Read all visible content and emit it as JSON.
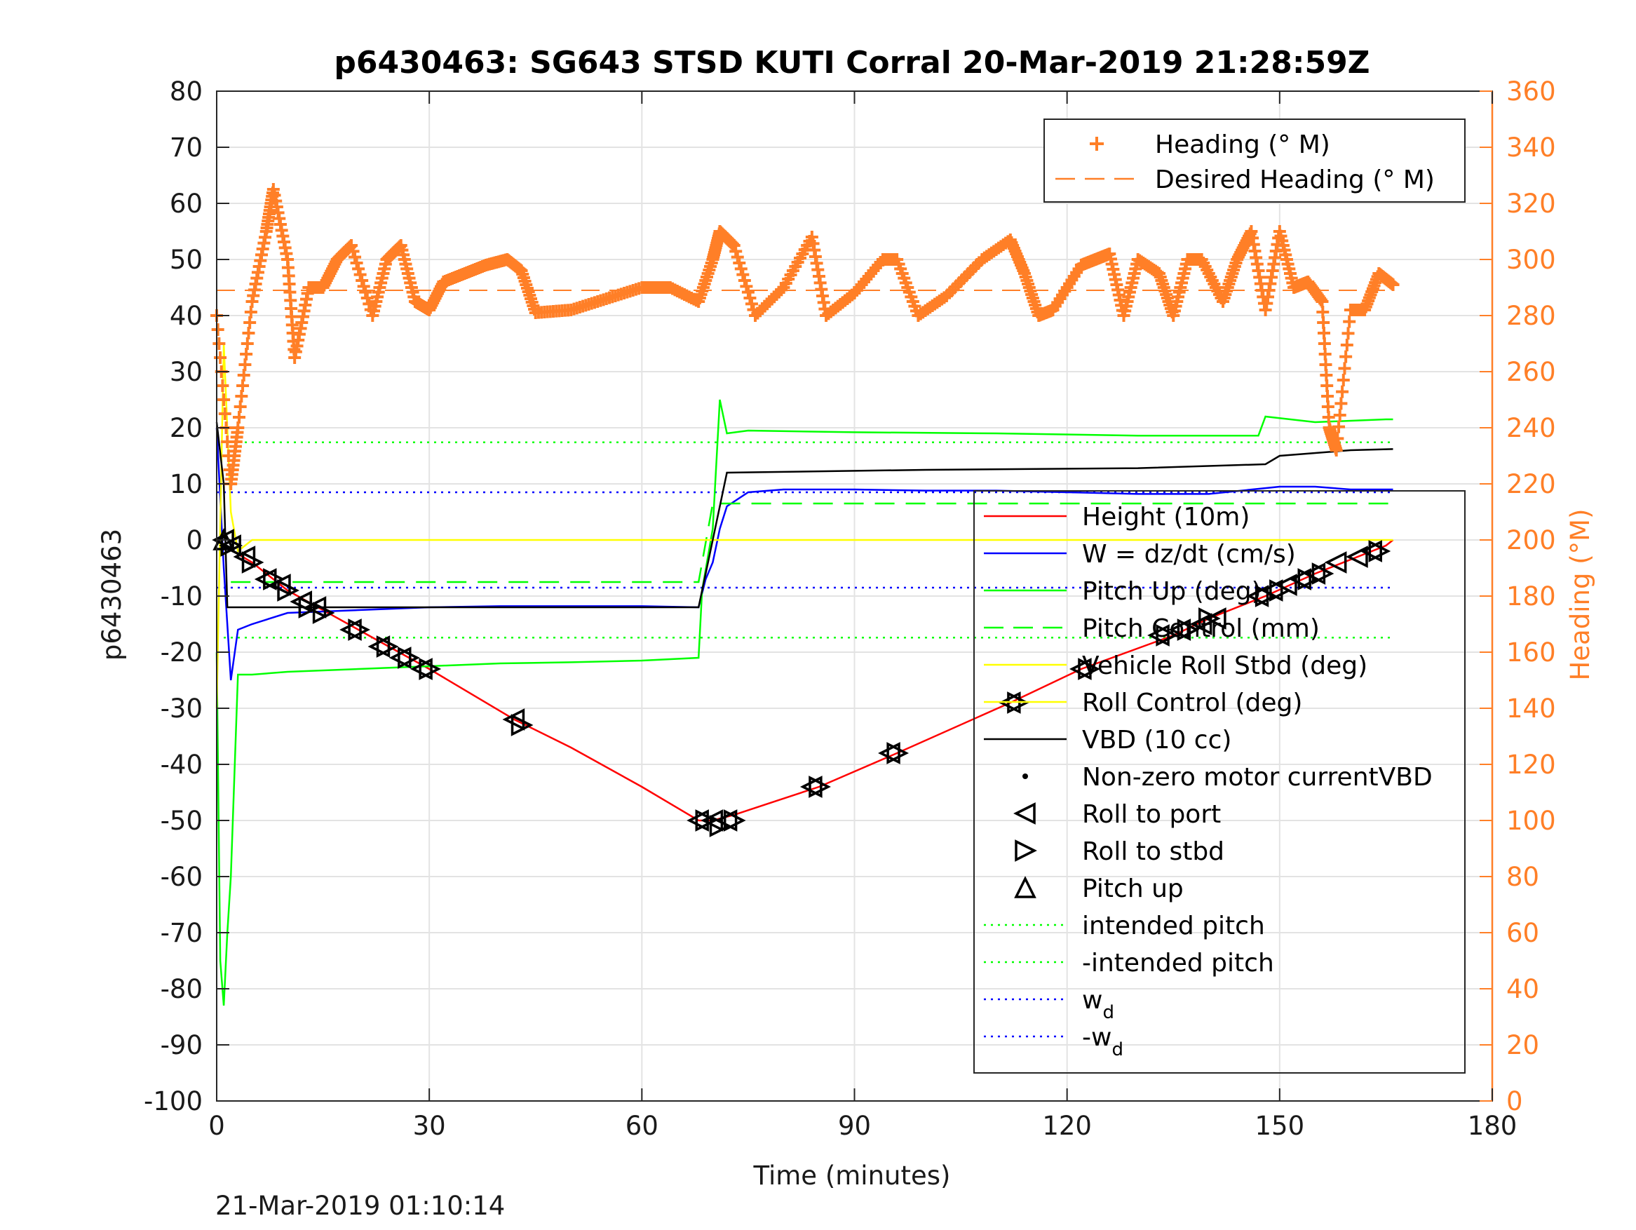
{
  "chart_data": {
    "type": "line",
    "title": "p6430463: SG643 STSD KUTI Corral 20-Mar-2019 21:28:59Z",
    "xlabel": "Time (minutes)",
    "ylabel_left": "p6430463",
    "ylabel_right": "Heading (°M)",
    "footer": "21-Mar-2019 01:10:14",
    "xlim": [
      0,
      180
    ],
    "ylim_left": [
      -100,
      80
    ],
    "ylim_right": [
      0,
      360
    ],
    "xticks": [
      0,
      30,
      60,
      90,
      120,
      150,
      180
    ],
    "yticks_left": [
      80,
      70,
      60,
      50,
      40,
      30,
      20,
      10,
      0,
      -10,
      -20,
      -30,
      -40,
      -50,
      -60,
      -70,
      -80,
      -90,
      -100
    ],
    "yticks_right": [
      360,
      340,
      320,
      300,
      280,
      260,
      240,
      220,
      200,
      180,
      160,
      140,
      120,
      100,
      80,
      60,
      40,
      20,
      0
    ],
    "grid": true,
    "legend_top": {
      "placement": "top-right",
      "entries": [
        {
          "label": "Heading (° M)",
          "color": "#ff7f27",
          "style": "plus"
        },
        {
          "label": "Desired Heading (° M)",
          "color": "#ff7f27",
          "style": "dash"
        }
      ]
    },
    "legend_main": {
      "placement": "right",
      "entries": [
        {
          "label": "Height (10m)",
          "color": "#ff0000",
          "style": "line"
        },
        {
          "label": "W = dz/dt (cm/s)",
          "color": "#0000ff",
          "style": "line"
        },
        {
          "label": "Pitch Up (deg)",
          "color": "#00ff00",
          "style": "line"
        },
        {
          "label": "Pitch Control (mm)",
          "color": "#00ff00",
          "style": "dash"
        },
        {
          "label": "Vehicle Roll Stbd (deg)",
          "color": "#ffff00",
          "style": "line"
        },
        {
          "label": "Roll Control (deg)",
          "color": "#ffff00",
          "style": "line"
        },
        {
          "label": "VBD (10 cc)",
          "color": "#000000",
          "style": "line"
        },
        {
          "label": "Non-zero motor currentVBD",
          "color": "#000000",
          "style": "dot"
        },
        {
          "label": "Roll to port",
          "color": "#000000",
          "style": "tri-left"
        },
        {
          "label": "Roll to stbd",
          "color": "#000000",
          "style": "tri-right"
        },
        {
          "label": "Pitch up",
          "color": "#000000",
          "style": "tri-up"
        },
        {
          "label": "intended pitch",
          "color": "#00ff00",
          "style": "dot-line"
        },
        {
          "label": "-intended pitch",
          "color": "#00ff00",
          "style": "dot-line"
        },
        {
          "label": "w",
          "sub": "d",
          "color": "#0000ff",
          "style": "dot-line"
        },
        {
          "label": "-w",
          "sub": "d",
          "color": "#0000ff",
          "style": "dot-line"
        }
      ]
    },
    "reference_lines": {
      "intended_pitch": 17.4,
      "neg_intended_pitch": -17.4,
      "w_d": 8.5,
      "neg_w_d": -8.5,
      "desired_heading": 289
    },
    "series": [
      {
        "name": "Height (10m)",
        "color": "#ff0000",
        "axis": "left",
        "x": [
          0,
          1,
          5,
          10,
          20,
          30,
          42,
          50,
          60,
          68,
          70,
          73,
          85,
          96,
          112,
          122,
          135,
          140,
          148,
          155,
          165,
          166
        ],
        "y": [
          0,
          -1,
          -4,
          -9,
          -16,
          -23,
          -32,
          -37,
          -44,
          -50,
          -50,
          -49,
          -44,
          -38,
          -29,
          -23,
          -17,
          -14,
          -10,
          -6,
          -1,
          0
        ]
      },
      {
        "name": "W = dz/dt (cm/s)",
        "color": "#0000ff",
        "axis": "left",
        "x": [
          0,
          1,
          2,
          3,
          5,
          10,
          20,
          30,
          40,
          50,
          60,
          68,
          69,
          70,
          71,
          72,
          75,
          80,
          90,
          100,
          110,
          120,
          130,
          140,
          150,
          155,
          160,
          166
        ],
        "y": [
          20,
          -5,
          -25,
          -16,
          -15,
          -13,
          -12.5,
          -12,
          -11.8,
          -11.8,
          -11.8,
          -12,
          -7,
          -4,
          2,
          6,
          8.5,
          9,
          9,
          8.8,
          8.8,
          8.5,
          8.2,
          8.2,
          9.5,
          9.5,
          9,
          9
        ]
      },
      {
        "name": "Pitch Up (deg)",
        "color": "#00ff00",
        "axis": "left",
        "x": [
          0,
          0.5,
          1,
          1.5,
          2,
          3,
          5,
          10,
          20,
          30,
          40,
          50,
          60,
          68,
          68.5,
          70,
          71,
          72,
          75,
          90,
          110,
          130,
          147,
          148,
          155,
          165,
          166
        ],
        "y": [
          -20,
          -75,
          -83,
          -70,
          -60,
          -24,
          -24,
          -23.5,
          -23,
          -22.5,
          -22,
          -21.8,
          -21.5,
          -21,
          -9,
          2,
          25,
          19,
          19.5,
          19.2,
          19,
          18.6,
          18.6,
          22,
          21,
          21.5,
          21.5
        ]
      },
      {
        "name": "Pitch Control (mm)",
        "color": "#00ff00",
        "axis": "left",
        "dash": true,
        "x": [
          2,
          68,
          70,
          166
        ],
        "y": [
          -7.5,
          -7.5,
          6.5,
          6.5
        ]
      },
      {
        "name": "Vehicle Roll Stbd (deg)",
        "color": "#ffff00",
        "axis": "left",
        "x": [
          0,
          1,
          2,
          3,
          5,
          8,
          10,
          20,
          30,
          40,
          50,
          60,
          68,
          70,
          80,
          90,
          100,
          110,
          120,
          130,
          140,
          150,
          160,
          166
        ],
        "y": [
          -30,
          35,
          5,
          -2,
          0,
          0,
          0,
          0,
          0,
          0,
          0,
          0,
          0,
          0,
          0,
          0,
          0,
          0,
          0,
          0,
          0,
          0,
          0,
          0
        ]
      },
      {
        "name": "VBD (10 cc)",
        "color": "#000000",
        "axis": "left",
        "x": [
          0,
          1,
          1.5,
          2,
          68,
          70,
          72,
          100,
          130,
          148,
          150,
          160,
          166
        ],
        "y": [
          21,
          10,
          -12,
          -12,
          -12,
          0,
          12,
          12.5,
          12.8,
          13.5,
          15,
          16,
          16.2
        ]
      },
      {
        "name": "Heading (° M)",
        "color": "#ff7f27",
        "axis": "right",
        "x": [
          0,
          2,
          3,
          5,
          7,
          8,
          10,
          11,
          13,
          15,
          17,
          19,
          22,
          24,
          26,
          28,
          30,
          32,
          35,
          38,
          41,
          43,
          45,
          50,
          55,
          60,
          64,
          68,
          70,
          71,
          73,
          76,
          80,
          84,
          86,
          90,
          94,
          96,
          99,
          103,
          108,
          112,
          114,
          116,
          118,
          122,
          124,
          126,
          128,
          130,
          133,
          135,
          137,
          139,
          142,
          144,
          146,
          148,
          150,
          152,
          154,
          156,
          157,
          158,
          160,
          162,
          164,
          166
        ],
        "y": [
          280,
          220,
          240,
          285,
          310,
          325,
          300,
          265,
          290,
          290,
          300,
          305,
          280,
          300,
          305,
          285,
          282,
          292,
          295,
          298,
          300,
          296,
          281,
          282,
          286,
          290,
          290,
          285,
          300,
          310,
          305,
          280,
          290,
          308,
          280,
          288,
          300,
          300,
          280,
          287,
          300,
          307,
          295,
          280,
          282,
          298,
          300,
          302,
          280,
          300,
          295,
          280,
          300,
          300,
          285,
          300,
          310,
          282,
          310,
          290,
          292,
          285,
          240,
          232,
          282,
          282,
          295,
          291
        ]
      }
    ],
    "markers": {
      "roll_port": {
        "x": [
          1,
          2,
          4,
          7,
          9,
          12,
          14,
          19,
          23,
          26,
          29,
          42,
          68,
          70,
          72,
          84,
          95,
          112,
          122,
          133,
          136,
          139,
          141,
          147,
          149,
          151,
          153,
          155,
          158,
          161,
          163
        ],
        "y": [
          0,
          -1,
          -3,
          -7,
          -8,
          -11,
          -12,
          -16,
          -19,
          -21,
          -23,
          -32,
          -50,
          -50,
          -50,
          -44,
          -38,
          -29,
          -23,
          -17,
          -16,
          -15,
          -14,
          -10,
          -9,
          -8,
          -7,
          -6,
          -4,
          -3,
          -2
        ]
      },
      "roll_stbd": {
        "x": [
          2,
          5,
          8,
          10,
          13,
          15,
          20,
          24,
          27,
          30,
          43,
          69,
          71,
          73,
          85,
          96,
          113,
          123,
          134,
          137,
          140,
          148,
          150,
          154,
          156,
          164
        ],
        "y": [
          -1,
          -4,
          -7,
          -9,
          -12,
          -13,
          -16,
          -19,
          -21,
          -23,
          -33,
          -50,
          -51,
          -50,
          -44,
          -38,
          -29,
          -23,
          -17,
          -16,
          -14,
          -10,
          -9,
          -7,
          -6,
          -2
        ]
      },
      "pitch_up": {
        "x": [
          1
        ],
        "y": [
          0
        ]
      }
    }
  }
}
